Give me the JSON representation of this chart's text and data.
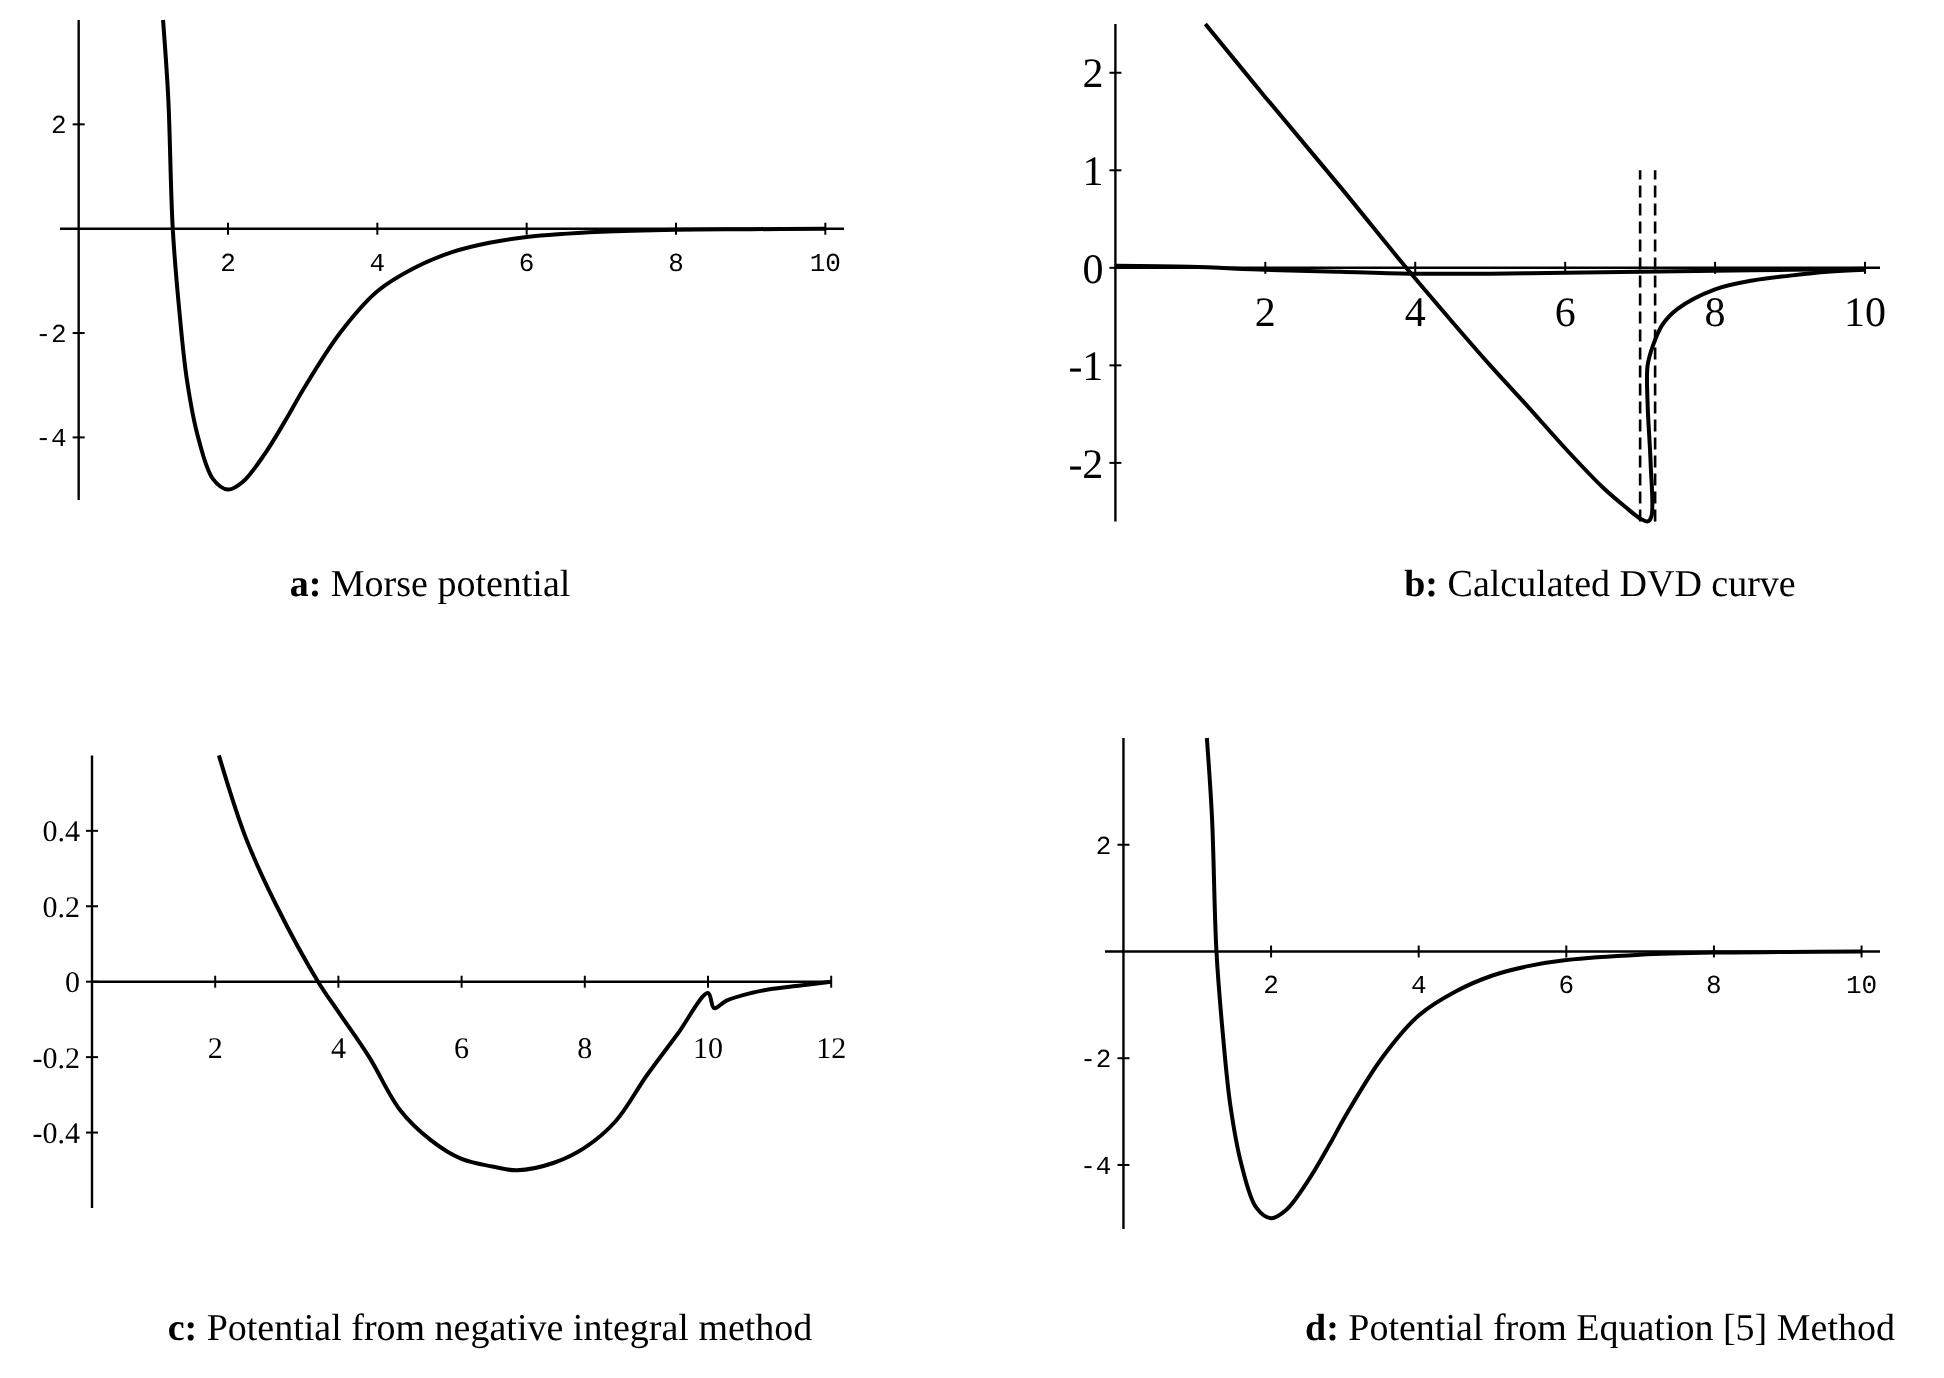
{
  "chart_data": [
    {
      "type": "line",
      "title": "a: Morse potential",
      "xlim": [
        -0.25,
        10.25
      ],
      "ylim": [
        -5.2,
        4
      ],
      "xticks": [
        2,
        4,
        6,
        8,
        10
      ],
      "yticks": [
        -4,
        -2,
        2
      ],
      "marker": "none",
      "series": [
        {
          "color": "#000000",
          "x": [
            1.13,
            1.2,
            1.26,
            1.35,
            1.45,
            1.6,
            1.8,
            2.0,
            2.2,
            2.5,
            2.8,
            3.0,
            3.5,
            4.0,
            4.5,
            5,
            5.5,
            6,
            7,
            8,
            9,
            10
          ],
          "values": [
            4.0,
            2.5,
            0,
            -1.6,
            -2.9,
            -4.0,
            -4.8,
            -5.0,
            -4.85,
            -4.3,
            -3.6,
            -3.1,
            -2.0,
            -1.2,
            -0.75,
            -0.45,
            -0.27,
            -0.16,
            -0.06,
            -0.02,
            -0.01,
            0
          ]
        }
      ]
    },
    {
      "type": "line",
      "title": "b: Calculated DVD curve",
      "xlim": [
        0,
        10.2
      ],
      "ylim": [
        -2.6,
        2.5
      ],
      "xticks": [
        2,
        4,
        6,
        8,
        10
      ],
      "yticks": [
        -2,
        -1,
        0,
        1,
        2
      ],
      "marker": "none",
      "series": [
        {
          "color": "#000000",
          "x": [
            1.2,
            2,
            3,
            3.88,
            4.5,
            5,
            5.5,
            6,
            6.5,
            6.8,
            7.0,
            7.1,
            7.15,
            7.14,
            7.1,
            7.1,
            7.17,
            7.3,
            7.5,
            8,
            8.5,
            9,
            9.5,
            10
          ],
          "values": [
            2.5,
            1.75,
            0.83,
            0,
            -0.56,
            -1.0,
            -1.42,
            -1.85,
            -2.25,
            -2.45,
            -2.57,
            -2.6,
            -2.55,
            -2.0,
            -1.4,
            -1.0,
            -0.8,
            -0.58,
            -0.42,
            -0.22,
            -0.13,
            -0.08,
            -0.04,
            -0.02
          ]
        },
        {
          "color": "#000000",
          "x": [
            0,
            1,
            2,
            3,
            4,
            5,
            6,
            7,
            8,
            9,
            10
          ],
          "values": [
            0.02,
            0.01,
            -0.02,
            -0.04,
            -0.06,
            -0.06,
            -0.05,
            -0.04,
            -0.03,
            -0.02,
            -0.01
          ]
        },
        {
          "color": "#000000",
          "line_style": "dashed",
          "x": [
            7.0,
            7.0
          ],
          "values": [
            -2.6,
            1
          ]
        },
        {
          "color": "#000000",
          "line_style": "dashed",
          "x": [
            7.2,
            7.2
          ],
          "values": [
            -2.6,
            1
          ]
        }
      ]
    },
    {
      "type": "line",
      "title": "c: Potential from negative integral method",
      "xlim": [
        0,
        12
      ],
      "ylim": [
        -0.6,
        0.6
      ],
      "xticks": [
        2,
        4,
        6,
        8,
        10,
        12
      ],
      "yticks": [
        -0.4,
        -0.2,
        0,
        0.2,
        0.4
      ],
      "marker": "none",
      "series": [
        {
          "color": "#000000",
          "x": [
            2.06,
            2.5,
            3,
            3.67,
            4,
            4.5,
            5,
            5.5,
            6,
            6.5,
            6.9,
            7.5,
            8,
            8.5,
            9,
            9.5,
            10,
            10.1,
            10.3,
            10.7,
            11,
            11.5,
            12
          ],
          "values": [
            0.6,
            0.38,
            0.2,
            0,
            -0.08,
            -0.2,
            -0.34,
            -0.42,
            -0.47,
            -0.49,
            -0.5,
            -0.48,
            -0.44,
            -0.37,
            -0.25,
            -0.14,
            -0.03,
            -0.07,
            -0.05,
            -0.03,
            -0.02,
            -0.01,
            0
          ]
        }
      ]
    },
    {
      "type": "line",
      "title": "d: Potential from Equation [5] Method",
      "xlim": [
        -0.25,
        10.25
      ],
      "ylim": [
        -5.2,
        4
      ],
      "xticks": [
        2,
        4,
        6,
        8,
        10
      ],
      "yticks": [
        -4,
        -2,
        2
      ],
      "marker": "none",
      "series": [
        {
          "color": "#000000",
          "x": [
            1.13,
            1.2,
            1.26,
            1.35,
            1.45,
            1.6,
            1.8,
            2.0,
            2.2,
            2.5,
            2.8,
            3.0,
            3.5,
            4.0,
            4.5,
            5,
            5.5,
            6,
            7,
            8,
            9,
            10
          ],
          "values": [
            4.0,
            2.5,
            0,
            -1.6,
            -2.9,
            -4.0,
            -4.8,
            -5.0,
            -4.85,
            -4.3,
            -3.6,
            -3.1,
            -2.0,
            -1.2,
            -0.75,
            -0.45,
            -0.27,
            -0.16,
            -0.06,
            -0.02,
            -0.01,
            0
          ]
        }
      ]
    }
  ]
}
